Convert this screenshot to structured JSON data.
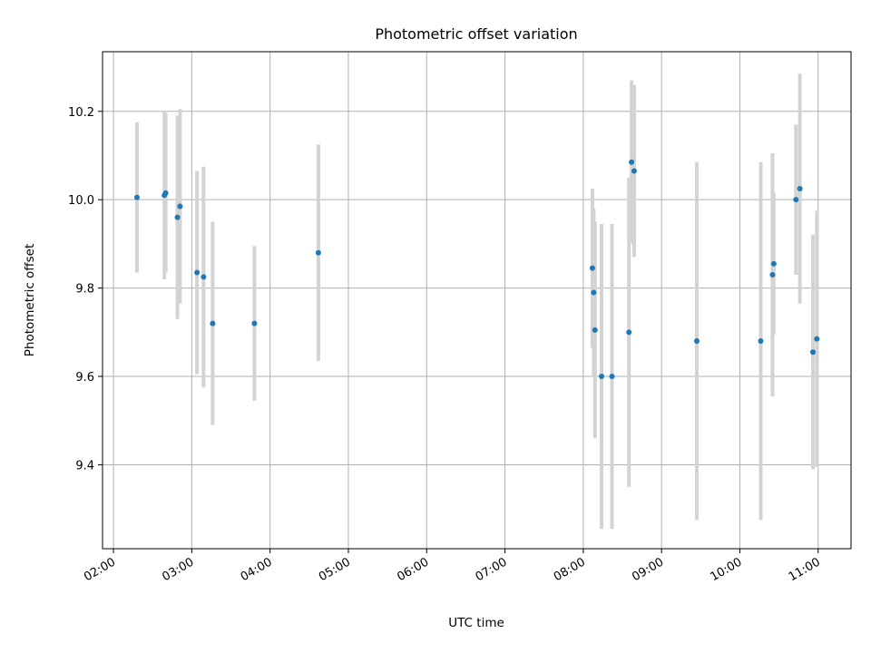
{
  "chart_data": {
    "type": "scatter",
    "title": "Photometric offset variation",
    "xlabel": "UTC time",
    "ylabel": "Photometric offset",
    "x_tick_labels": [
      "02:00",
      "03:00",
      "04:00",
      "05:00",
      "06:00",
      "07:00",
      "08:00",
      "09:00",
      "10:00",
      "11:00"
    ],
    "x_ticks_hours": [
      2,
      3,
      4,
      5,
      6,
      7,
      8,
      9,
      10,
      11
    ],
    "y_ticks": [
      9.4,
      9.6,
      9.8,
      10.0,
      10.2
    ],
    "y_tick_labels": [
      "9.4",
      "9.6",
      "9.8",
      "10.0",
      "10.2"
    ],
    "xlim_hours": [
      1.86,
      11.42
    ],
    "ylim": [
      9.21,
      10.335
    ],
    "grid": true,
    "point_color": "#1f77b4",
    "errorbar_color": "#d3d3d3",
    "points": [
      {
        "time": "02:18",
        "y": 10.005,
        "err": 0.17
      },
      {
        "time": "02:39",
        "y": 10.01,
        "err": 0.19
      },
      {
        "time": "02:40",
        "y": 10.015,
        "err": 0.18
      },
      {
        "time": "02:49",
        "y": 9.96,
        "err": 0.23
      },
      {
        "time": "02:51",
        "y": 9.985,
        "err": 0.22
      },
      {
        "time": "03:04",
        "y": 9.835,
        "err": 0.23
      },
      {
        "time": "03:09",
        "y": 9.825,
        "err": 0.25
      },
      {
        "time": "03:16",
        "y": 9.72,
        "err": 0.23
      },
      {
        "time": "03:48",
        "y": 9.72,
        "err": 0.175
      },
      {
        "time": "04:37",
        "y": 9.88,
        "err": 0.245
      },
      {
        "time": "08:07",
        "y": 9.845,
        "err": 0.18
      },
      {
        "time": "08:08",
        "y": 9.79,
        "err": 0.19
      },
      {
        "time": "08:09",
        "y": 9.705,
        "err": 0.245
      },
      {
        "time": "08:14",
        "y": 9.6,
        "err": 0.345
      },
      {
        "time": "08:22",
        "y": 9.6,
        "err": 0.345
      },
      {
        "time": "08:35",
        "y": 9.7,
        "err": 0.35
      },
      {
        "time": "08:37",
        "y": 10.085,
        "err": 0.185
      },
      {
        "time": "08:39",
        "y": 10.065,
        "err": 0.195
      },
      {
        "time": "09:27",
        "y": 9.68,
        "err": 0.405
      },
      {
        "time": "10:16",
        "y": 9.68,
        "err": 0.405
      },
      {
        "time": "10:25",
        "y": 9.83,
        "err": 0.275
      },
      {
        "time": "10:26",
        "y": 9.855,
        "err": 0.16
      },
      {
        "time": "10:43",
        "y": 10.0,
        "err": 0.17
      },
      {
        "time": "10:46",
        "y": 10.025,
        "err": 0.26
      },
      {
        "time": "10:56",
        "y": 9.655,
        "err": 0.265
      },
      {
        "time": "10:59",
        "y": 9.685,
        "err": 0.29
      }
    ]
  }
}
